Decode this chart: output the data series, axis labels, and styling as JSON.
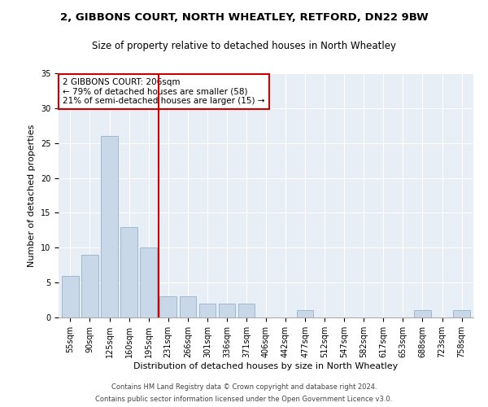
{
  "title1": "2, GIBBONS COURT, NORTH WHEATLEY, RETFORD, DN22 9BW",
  "title2": "Size of property relative to detached houses in North Wheatley",
  "xlabel": "Distribution of detached houses by size in North Wheatley",
  "ylabel": "Number of detached properties",
  "categories": [
    "55sqm",
    "90sqm",
    "125sqm",
    "160sqm",
    "195sqm",
    "231sqm",
    "266sqm",
    "301sqm",
    "336sqm",
    "371sqm",
    "406sqm",
    "442sqm",
    "477sqm",
    "512sqm",
    "547sqm",
    "582sqm",
    "617sqm",
    "653sqm",
    "688sqm",
    "723sqm",
    "758sqm"
  ],
  "values": [
    6,
    9,
    26,
    13,
    10,
    3,
    3,
    2,
    2,
    2,
    0,
    0,
    1,
    0,
    0,
    0,
    0,
    0,
    1,
    0,
    1
  ],
  "bar_color": "#c8d8e8",
  "bar_edgecolor": "#a0b8d0",
  "vline_x": 4.5,
  "vline_color": "#cc0000",
  "annotation_line1": "2 GIBBONS COURT: 206sqm",
  "annotation_line2": "← 79% of detached houses are smaller (58)",
  "annotation_line3": "21% of semi-detached houses are larger (15) →",
  "annotation_box_color": "#ffffff",
  "annotation_box_edgecolor": "#cc0000",
  "ylim": [
    0,
    35
  ],
  "yticks": [
    0,
    5,
    10,
    15,
    20,
    25,
    30,
    35
  ],
  "footer1": "Contains HM Land Registry data © Crown copyright and database right 2024.",
  "footer2": "Contains public sector information licensed under the Open Government Licence v3.0.",
  "bg_color": "#e8eef5",
  "fig_bg_color": "#ffffff",
  "title_fontsize": 9.5,
  "subtitle_fontsize": 8.5,
  "label_fontsize": 8,
  "tick_fontsize": 7,
  "annotation_fontsize": 7.5,
  "footer_fontsize": 6
}
